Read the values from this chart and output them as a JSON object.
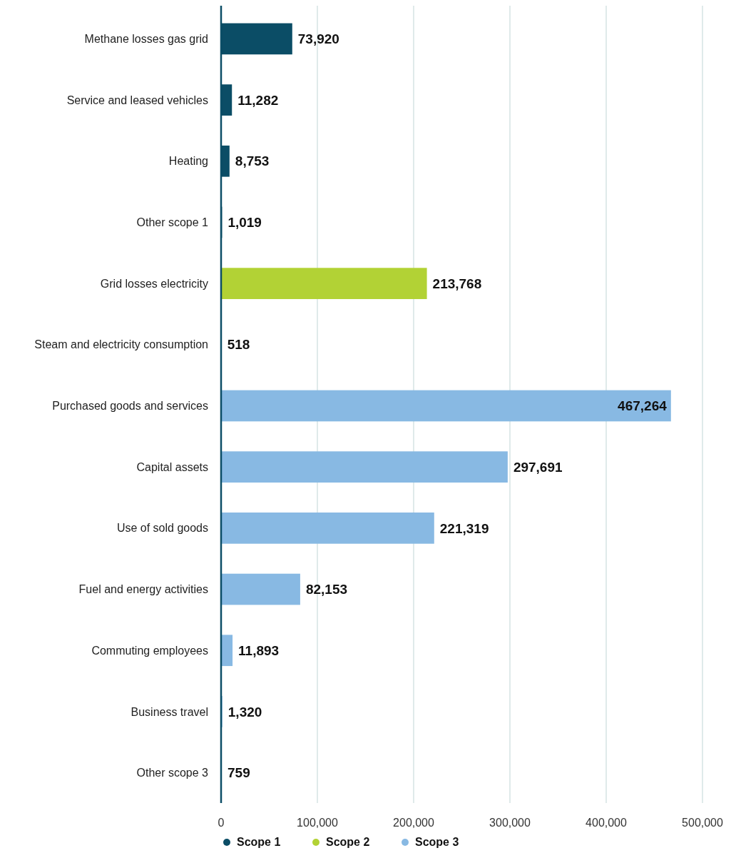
{
  "chart_data": {
    "type": "bar",
    "orientation": "horizontal",
    "categories": [
      "Methane losses gas grid",
      "Service and leased vehicles",
      "Heating",
      "Other scope 1",
      "Grid losses electricity",
      "Steam and electricity consumption",
      "Purchased goods and services",
      "Capital assets",
      "Use of sold goods",
      "Fuel and energy activities",
      "Commuting employees",
      "Business travel",
      "Other scope 3"
    ],
    "series": [
      {
        "name": "Scope 1",
        "color": "#0b4d66",
        "values": [
          73920,
          11282,
          8753,
          1019,
          null,
          null,
          null,
          null,
          null,
          null,
          null,
          null,
          null
        ],
        "value_labels": [
          "73,920",
          "11,282",
          "8,753",
          "1,019",
          null,
          null,
          null,
          null,
          null,
          null,
          null,
          null,
          null
        ]
      },
      {
        "name": "Scope 2",
        "color": "#b2d235",
        "values": [
          null,
          null,
          null,
          null,
          213768,
          518,
          null,
          null,
          null,
          null,
          null,
          null,
          null
        ],
        "value_labels": [
          null,
          null,
          null,
          null,
          "213,768",
          "518",
          null,
          null,
          null,
          null,
          null,
          null,
          null
        ]
      },
      {
        "name": "Scope 3",
        "color": "#88b9e3",
        "values": [
          null,
          null,
          null,
          null,
          null,
          null,
          467264,
          297691,
          221319,
          82153,
          11893,
          1320,
          759
        ],
        "value_labels": [
          null,
          null,
          null,
          null,
          null,
          null,
          "467,264",
          "297,691",
          "221,319",
          "82,153",
          "11,893",
          "1,320",
          "759"
        ]
      }
    ],
    "xlim": [
      0,
      500000
    ],
    "xticks": [
      0,
      {
        "value": 100000,
        "label": "100,000"
      },
      {
        "value": 200000,
        "label": "200,000"
      },
      {
        "value": 300000,
        "label": "300,000"
      },
      {
        "value": 400000,
        "label": "400,000"
      },
      {
        "value": 500000,
        "label": "500,000"
      }
    ],
    "grid": "x",
    "legend": "bottom"
  }
}
